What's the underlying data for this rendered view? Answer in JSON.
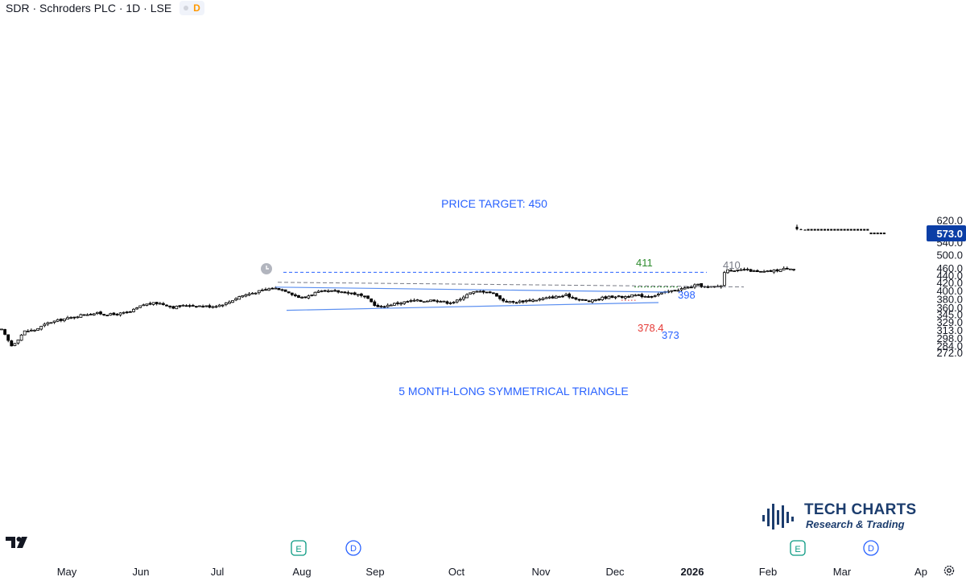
{
  "header": {
    "symbol_line": "SDR · Schroders PLC · 1D · LSE",
    "badge": "D",
    "badge_color": "#ff9800"
  },
  "branding": {
    "name": "TECH CHARTS",
    "tagline": "Research & Trading",
    "color": "#1c3d6e"
  },
  "colors": {
    "annotation_blue": "#2962ff",
    "trendline_blue": "#5b8ff0",
    "resistance_green": "#2e8b2e",
    "support_red": "#e53935",
    "neutral_gray": "#787b86",
    "candle": "#000000",
    "last_price_bg": "#0b3ea6"
  },
  "chart_data": {
    "type": "candlestick",
    "title": "SDR · Schroders PLC · 1D · LSE",
    "y_scale": "log",
    "ylim": [
      265,
      625
    ],
    "y_ticks": [
      "620.0",
      "580.0",
      "540.0",
      "500.0",
      "460.0",
      "440.0",
      "420.0",
      "400.0",
      "380.0",
      "360.0",
      "345.0",
      "329.0",
      "313.0",
      "298.0",
      "284.0",
      "272.0"
    ],
    "x_ticks": [
      "May",
      "Jun",
      "Jul",
      "Aug",
      "Sep",
      "Oct",
      "Nov",
      "Dec",
      "2026",
      "Feb",
      "Mar",
      "Ap"
    ],
    "last_price": "573.0",
    "earnings_markers": [
      {
        "label": "E",
        "period": "Aug"
      },
      {
        "label": "E",
        "period": "Feb"
      }
    ],
    "dividend_markers": [
      {
        "label": "D",
        "period": "Aug"
      },
      {
        "label": "D",
        "period": "Mar"
      }
    ],
    "annotations": {
      "price_target": "PRICE TARGET: 450",
      "pattern": "5 MONTH-LONG SYMMETRICAL TRIANGLE",
      "level_411": "411",
      "level_410": "410",
      "level_398": "398",
      "level_378": "378.4",
      "level_373": "373"
    },
    "levels": {
      "price_target": 450,
      "horizontal_resistance": 411,
      "triangle_top_end": 398,
      "support": 378.4,
      "triangle_bottom_end": 373
    },
    "grid": false,
    "legend": "none"
  }
}
